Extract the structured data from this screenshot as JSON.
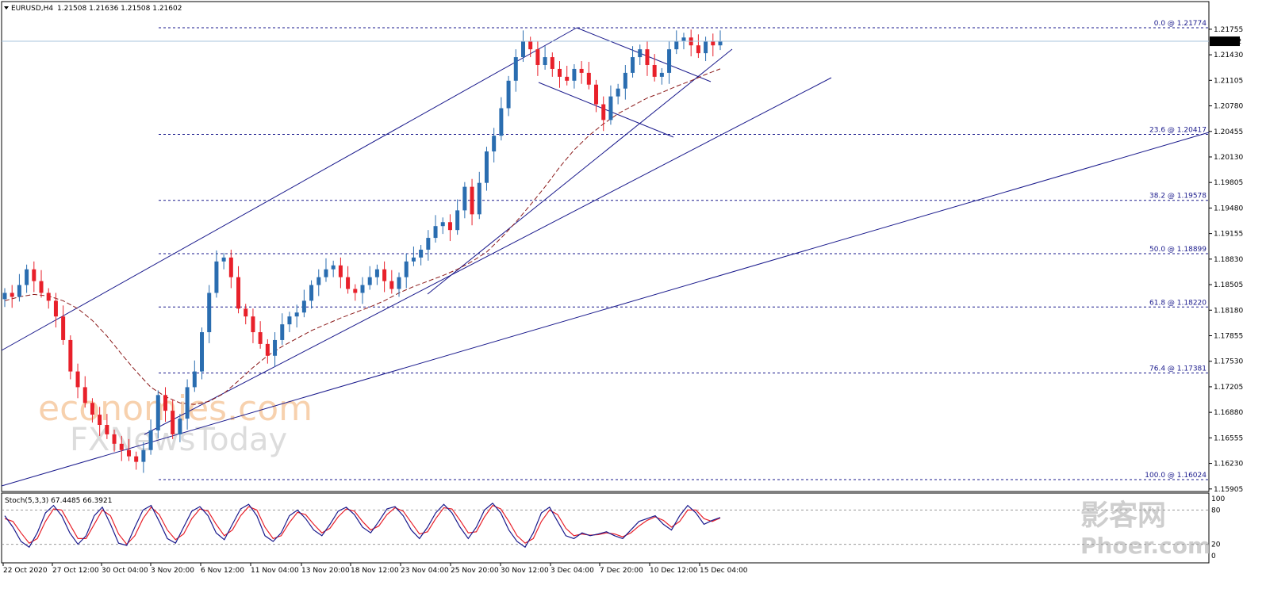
{
  "header": {
    "symbol": "EURUSD,H4",
    "ohlc": "1.21508 1.21636 1.21508 1.21602"
  },
  "colors": {
    "bull": "#2a6db0",
    "bear": "#e8202a",
    "fib": "#1a1a8c",
    "trend": "#1a1a8c",
    "ma": "#8b1a1a",
    "stoch_main": "#1a1a8c",
    "stoch_signal": "#e8202a",
    "price_line": "#aac4de",
    "price_tag_bg": "#000000",
    "price_tag_text": "#ffffff"
  },
  "watermark": {
    "line1": "economies.com",
    "line2": "FXNewsToday",
    "line3": "影客网",
    "line4": "Phoer.com"
  },
  "chart_data": [
    {
      "type": "candlestick",
      "price_axis": [
        "1.21755",
        "1.21430",
        "1.21105",
        "1.20780",
        "1.20455",
        "1.20130",
        "1.19805",
        "1.19480",
        "1.19155",
        "1.18830",
        "1.18505",
        "1.18180",
        "1.17855",
        "1.17530",
        "1.17205",
        "1.16880",
        "1.16555",
        "1.16230",
        "1.15905"
      ],
      "current_price": "1.21602",
      "x_labels": [
        "22 Oct 2020",
        "27 Oct 12:00",
        "30 Oct 04:00",
        "3 Nov 20:00",
        "6 Nov 12:00",
        "11 Nov 04:00",
        "13 Nov 20:00",
        "18 Nov 12:00",
        "23 Nov 04:00",
        "25 Nov 20:00",
        "30 Nov 12:00",
        "3 Dec 04:00",
        "7 Dec 20:00",
        "10 Dec 12:00",
        "15 Dec 04:00"
      ],
      "close_series": [
        1.184,
        1.1835,
        1.185,
        1.187,
        1.1855,
        1.184,
        1.183,
        1.181,
        1.178,
        1.174,
        1.172,
        1.17,
        1.1685,
        1.1672,
        1.166,
        1.1648,
        1.164,
        1.1632,
        1.1625,
        1.164,
        1.1665,
        1.171,
        1.169,
        1.166,
        1.168,
        1.172,
        1.174,
        1.179,
        1.184,
        1.188,
        1.1885,
        1.186,
        1.182,
        1.181,
        1.179,
        1.1775,
        1.176,
        1.178,
        1.18,
        1.181,
        1.1815,
        1.183,
        1.185,
        1.186,
        1.187,
        1.1875,
        1.186,
        1.1845,
        1.184,
        1.185,
        1.186,
        1.187,
        1.1855,
        1.1845,
        1.186,
        1.188,
        1.1885,
        1.1895,
        1.191,
        1.1925,
        1.193,
        1.192,
        1.1945,
        1.1975,
        1.194,
        1.198,
        1.202,
        1.204,
        1.2075,
        1.211,
        1.214,
        1.216,
        1.215,
        1.213,
        1.214,
        1.2125,
        1.2115,
        1.211,
        1.2125,
        1.212,
        1.2105,
        1.208,
        1.206,
        1.209,
        1.21,
        1.212,
        1.214,
        1.215,
        1.213,
        1.2115,
        1.212,
        1.215,
        1.216,
        1.2165,
        1.2155,
        1.2145,
        1.216,
        1.2155,
        1.216
      ],
      "ma_series": [
        1.183,
        1.1835,
        1.1838,
        1.1836,
        1.183,
        1.182,
        1.1805,
        1.1785,
        1.1762,
        1.174,
        1.172,
        1.1708,
        1.17,
        1.1698,
        1.1702,
        1.1712,
        1.1728,
        1.1745,
        1.176,
        1.1772,
        1.1782,
        1.1792,
        1.18,
        1.1808,
        1.1815,
        1.1822,
        1.183,
        1.184,
        1.1848,
        1.1855,
        1.1862,
        1.187,
        1.188,
        1.1892,
        1.191,
        1.193,
        1.1952,
        1.1975,
        1.2,
        1.2022,
        1.204,
        1.2055,
        1.2068,
        1.2078,
        1.2088,
        1.2095,
        1.2103,
        1.211,
        1.2118,
        1.2125
      ],
      "fibonacci": [
        {
          "label": "0.0 @ 1.21774",
          "price": 1.21774
        },
        {
          "label": "23.6 @ 1.20417",
          "price": 1.20417
        },
        {
          "label": "38.2 @ 1.19578",
          "price": 1.19578
        },
        {
          "label": "50.0 @ 1.18899",
          "price": 1.18899
        },
        {
          "label": "61.8 @ 1.18220",
          "price": 1.1822
        },
        {
          "label": "76.4 @ 1.17381",
          "price": 1.17381
        },
        {
          "label": "100.0 @ 1.16024",
          "price": 1.16024
        }
      ]
    },
    {
      "type": "line",
      "title": "Stoch(5,3,3) 67.4485 66.3921",
      "y_axis": [
        "100",
        "80",
        "20",
        "0"
      ],
      "levels": [
        80,
        20
      ],
      "main_series": [
        70,
        50,
        25,
        15,
        40,
        75,
        88,
        70,
        40,
        20,
        35,
        70,
        85,
        55,
        22,
        18,
        50,
        80,
        88,
        60,
        30,
        22,
        50,
        78,
        86,
        70,
        40,
        28,
        55,
        82,
        90,
        70,
        35,
        25,
        40,
        70,
        80,
        65,
        45,
        35,
        55,
        78,
        85,
        72,
        50,
        40,
        60,
        82,
        86,
        70,
        45,
        30,
        50,
        75,
        90,
        75,
        50,
        30,
        50,
        80,
        92,
        75,
        45,
        25,
        15,
        40,
        75,
        85,
        60,
        35,
        30,
        40,
        35,
        38,
        42,
        35,
        30,
        45,
        60,
        65,
        70,
        55,
        45,
        70,
        88,
        75,
        55,
        62,
        67
      ],
      "signal_series": [
        65,
        60,
        40,
        22,
        30,
        60,
        82,
        80,
        55,
        30,
        30,
        55,
        80,
        70,
        38,
        20,
        35,
        65,
        85,
        72,
        45,
        28,
        38,
        65,
        82,
        78,
        55,
        35,
        45,
        70,
        86,
        80,
        50,
        30,
        35,
        58,
        76,
        72,
        55,
        40,
        48,
        68,
        82,
        78,
        60,
        45,
        52,
        72,
        84,
        78,
        58,
        38,
        42,
        65,
        84,
        82,
        62,
        40,
        42,
        68,
        88,
        82,
        60,
        35,
        22,
        30,
        60,
        80,
        72,
        48,
        35,
        38,
        36,
        37,
        40,
        38,
        33,
        40,
        52,
        62,
        68,
        62,
        50,
        60,
        80,
        80,
        65,
        60,
        66
      ]
    }
  ]
}
